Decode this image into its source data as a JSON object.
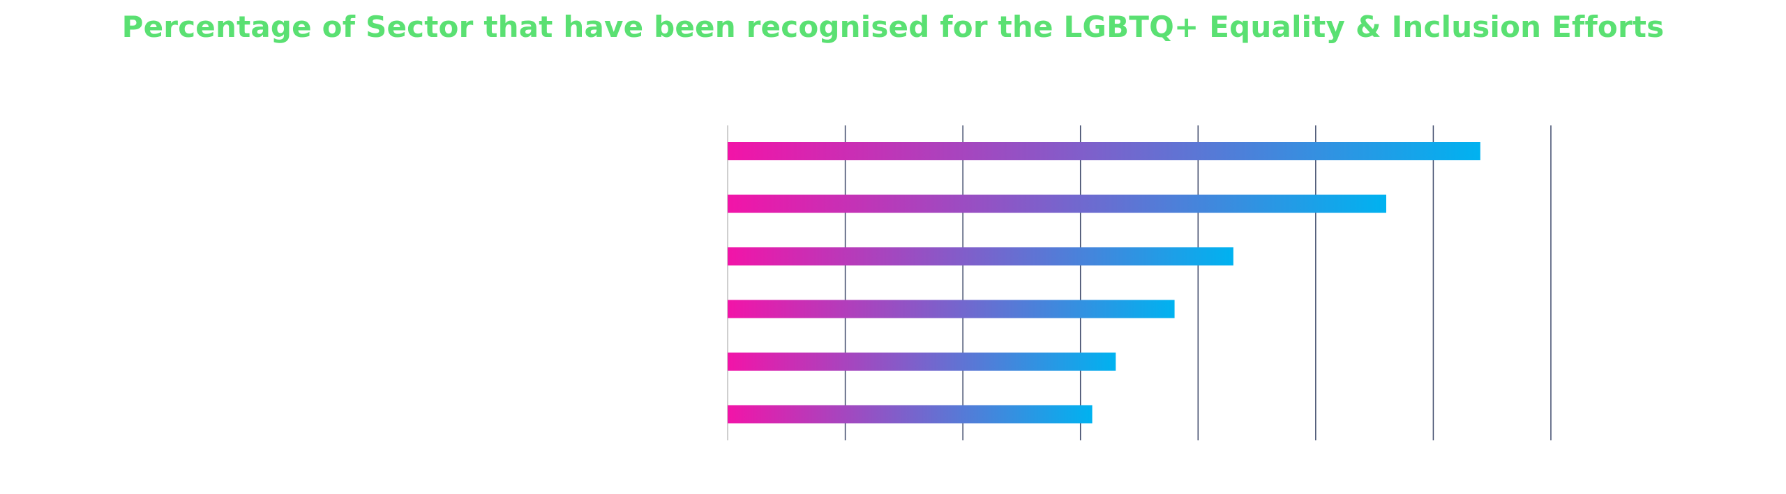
{
  "title": "Percentage of Sector that have been recognised for the LGBTQ+ Equality & Inclusion Efforts",
  "colors": {
    "title": "#5ae072",
    "bar_start": "#f214a8",
    "bar_end": "#00b2f0",
    "gridline": "#3f4a6b",
    "baseline": "#cfcfcf"
  },
  "chart_data": {
    "type": "bar",
    "orientation": "horizontal",
    "title": "Percentage of Sector that have been recognised for the LGBTQ+ Equality & Inclusion Efforts",
    "categories": [
      "",
      "",
      "",
      "",
      "",
      ""
    ],
    "values": [
      64,
      56,
      43,
      38,
      33,
      31
    ],
    "xlim": [
      0,
      70
    ],
    "grid": true,
    "tick_labels_visible": false
  }
}
